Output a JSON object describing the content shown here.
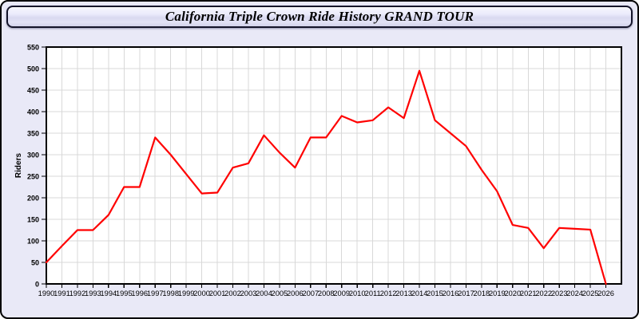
{
  "window": {
    "title": "California Triple Crown Ride History GRAND TOUR"
  },
  "chart_data": {
    "type": "line",
    "title": "California Triple Crown Ride History GRAND TOUR",
    "xlabel": "",
    "ylabel": "Riders",
    "x": [
      1990,
      1991,
      1992,
      1993,
      1994,
      1995,
      1996,
      1997,
      1998,
      1999,
      2000,
      2001,
      2002,
      2003,
      2004,
      2005,
      2006,
      2007,
      2008,
      2009,
      2010,
      2011,
      2012,
      2013,
      2014,
      2015,
      2016,
      2017,
      2018,
      2019,
      2020,
      2021,
      2022,
      2023,
      2024,
      2025,
      2026
    ],
    "series": [
      {
        "name": "Riders",
        "color": "#ff0000",
        "values": [
          50,
          88,
          125,
          125,
          160,
          225,
          225,
          340,
          300,
          255,
          210,
          212,
          270,
          280,
          345,
          305,
          270,
          340,
          340,
          390,
          375,
          380,
          410,
          385,
          495,
          380,
          350,
          320,
          265,
          215,
          137,
          130,
          83,
          130,
          128,
          126,
          0
        ]
      }
    ],
    "ylim": [
      0,
      550
    ],
    "ytick_step": 50,
    "xtick_step": 1,
    "grid": true,
    "legend_position": "none",
    "plot_bg": "#ffffff",
    "grid_color": "#d8d8d8",
    "axis_color": "#000000"
  },
  "colors": {
    "page_bg": "#e9e9f7",
    "title_bar_border": "#15152a",
    "series_line": "#ff0000"
  }
}
